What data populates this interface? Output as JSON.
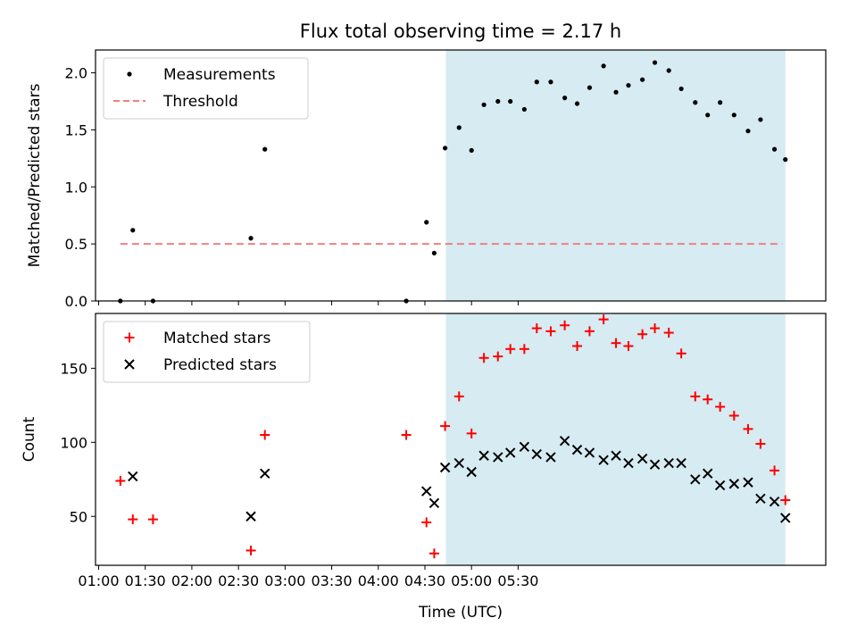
{
  "chart_data": {
    "title": "Flux total observing time = 2.17 h",
    "xlabel": "Time (UTC)",
    "x_unit": "minutes since 01:00 UTC",
    "xlim": [
      -2,
      468
    ],
    "x_ticks": [
      {
        "v": 0,
        "label": "01:00"
      },
      {
        "v": 30,
        "label": "01:30"
      },
      {
        "v": 60,
        "label": "02:00"
      },
      {
        "v": 90,
        "label": "02:30"
      },
      {
        "v": 120,
        "label": "03:00"
      },
      {
        "v": 150,
        "label": "03:30"
      },
      {
        "v": 180,
        "label": "04:00"
      },
      {
        "v": 210,
        "label": "04:30"
      },
      {
        "v": 240,
        "label": "05:00"
      },
      {
        "v": 270,
        "label": "05:30"
      }
    ],
    "shaded_span": [
      223.5,
      442
    ],
    "shade_color": "#add8e6",
    "panels": [
      {
        "type": "scatter",
        "ylabel": "Matched/Predicted stars",
        "ylim": [
          0,
          2.2
        ],
        "y_ticks": [
          {
            "v": 0,
            "label": "0.0"
          },
          {
            "v": 0.5,
            "label": "0.5"
          },
          {
            "v": 1.0,
            "label": "1.0"
          },
          {
            "v": 1.5,
            "label": "1.5"
          },
          {
            "v": 2.0,
            "label": "2.0"
          }
        ],
        "legend": {
          "position": "top-left",
          "items": [
            {
              "label": "Measurements",
              "marker": "dot",
              "color": "#000000"
            },
            {
              "label": "Threshold",
              "marker": "dash",
              "color": "#f08080"
            }
          ]
        },
        "threshold": {
          "y": 0.5,
          "x_range": [
            14,
            440
          ],
          "color": "#f08080"
        },
        "series": [
          {
            "name": "Measurements",
            "marker": "dot",
            "color": "#000000",
            "x": [
              14,
              22,
              35,
              98,
              107,
              198,
              211,
              216,
              223,
              232,
              240,
              248,
              257,
              265,
              274,
              282,
              291,
              300,
              308,
              316,
              325,
              333,
              341,
              350,
              358,
              367,
              375,
              384,
              392,
              400,
              409,
              418,
              426,
              435,
              442
            ],
            "y": [
              0.0,
              0.62,
              0.0,
              0.55,
              1.33,
              0.0,
              0.69,
              0.42,
              1.34,
              1.52,
              1.32,
              1.72,
              1.75,
              1.75,
              1.68,
              1.92,
              1.92,
              1.78,
              1.73,
              1.87,
              2.06,
              1.83,
              1.89,
              1.94,
              2.09,
              2.02,
              1.86,
              1.74,
              1.63,
              1.74,
              1.63,
              1.49,
              1.59,
              1.33,
              1.24
            ]
          }
        ]
      },
      {
        "type": "scatter",
        "ylabel": "Count",
        "ylim": [
          17,
          187
        ],
        "y_ticks": [
          {
            "v": 50,
            "label": "50"
          },
          {
            "v": 100,
            "label": "100"
          },
          {
            "v": 150,
            "label": "150"
          }
        ],
        "legend": {
          "position": "top-left",
          "items": [
            {
              "label": "Matched stars",
              "marker": "plus",
              "color": "#ff0000"
            },
            {
              "label": "Predicted stars",
              "marker": "x",
              "color": "#000000"
            }
          ]
        },
        "series": [
          {
            "name": "Matched stars",
            "marker": "plus",
            "color": "#ff0000",
            "x": [
              14,
              22,
              35,
              98,
              107,
              198,
              211,
              216,
              223,
              232,
              240,
              248,
              257,
              265,
              274,
              282,
              291,
              300,
              308,
              316,
              325,
              333,
              341,
              350,
              358,
              367,
              375,
              384,
              392,
              400,
              409,
              418,
              426,
              435,
              442
            ],
            "y": [
              74,
              48,
              48,
              27,
              105,
              105,
              46,
              25,
              111,
              131,
              106,
              157,
              158,
              163,
              163,
              177,
              175,
              179,
              165,
              175,
              183,
              167,
              165,
              173,
              177,
              174,
              160,
              131,
              129,
              124,
              118,
              109,
              99,
              81,
              61
            ]
          },
          {
            "name": "Predicted stars",
            "marker": "x",
            "color": "#000000",
            "x": [
              22,
              98,
              107,
              211,
              216,
              223,
              232,
              240,
              248,
              257,
              265,
              274,
              282,
              291,
              300,
              308,
              316,
              325,
              333,
              341,
              350,
              358,
              367,
              375,
              384,
              392,
              400,
              409,
              418,
              426,
              435,
              442
            ],
            "y": [
              77,
              50,
              79,
              67,
              59,
              83,
              86,
              80,
              91,
              90,
              93,
              97,
              92,
              90,
              101,
              95,
              93,
              88,
              91,
              86,
              89,
              85,
              86,
              86,
              75,
              79,
              71,
              72,
              73,
              62,
              60,
              49
            ]
          }
        ]
      }
    ]
  }
}
